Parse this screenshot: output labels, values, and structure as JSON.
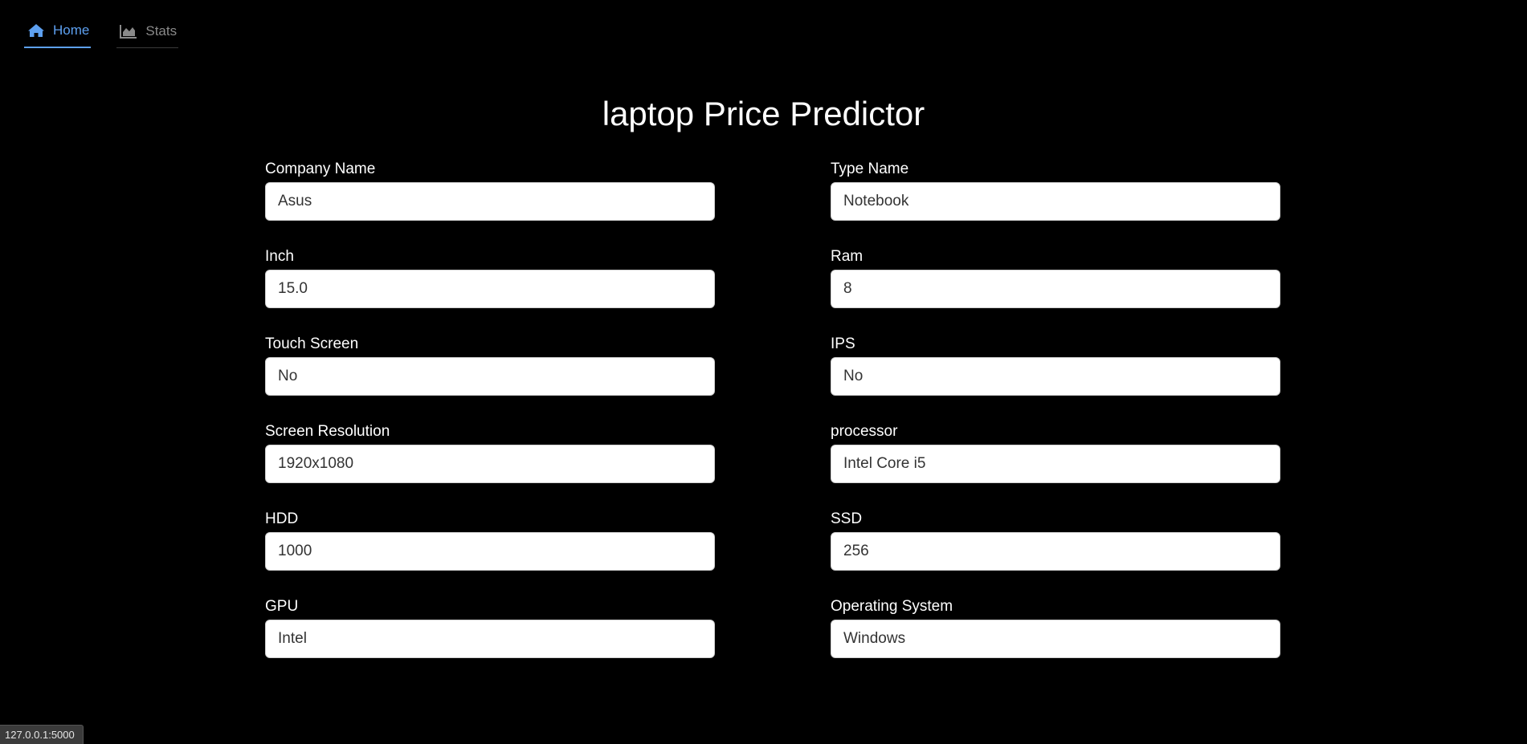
{
  "nav": {
    "home_label": "Home",
    "stats_label": "Stats",
    "active_color": "#5da0f0"
  },
  "page_title": "laptop Price Predictor",
  "form": {
    "company": {
      "label": "Company Name",
      "value": "Asus"
    },
    "type": {
      "label": "Type Name",
      "value": "Notebook"
    },
    "inch": {
      "label": "Inch",
      "value": "15.0"
    },
    "ram": {
      "label": "Ram",
      "value": "8"
    },
    "touch": {
      "label": "Touch Screen",
      "value": "No"
    },
    "ips": {
      "label": "IPS",
      "value": "No"
    },
    "resolution": {
      "label": "Screen Resolution",
      "value": "1920x1080"
    },
    "processor": {
      "label": "processor",
      "value": "Intel Core i5"
    },
    "hdd": {
      "label": "HDD",
      "value": "1000"
    },
    "ssd": {
      "label": "SSD",
      "value": "256"
    },
    "gpu": {
      "label": "GPU",
      "value": "Intel"
    },
    "os": {
      "label": "Operating System",
      "value": "Windows"
    }
  },
  "status_url": "127.0.0.1:5000"
}
